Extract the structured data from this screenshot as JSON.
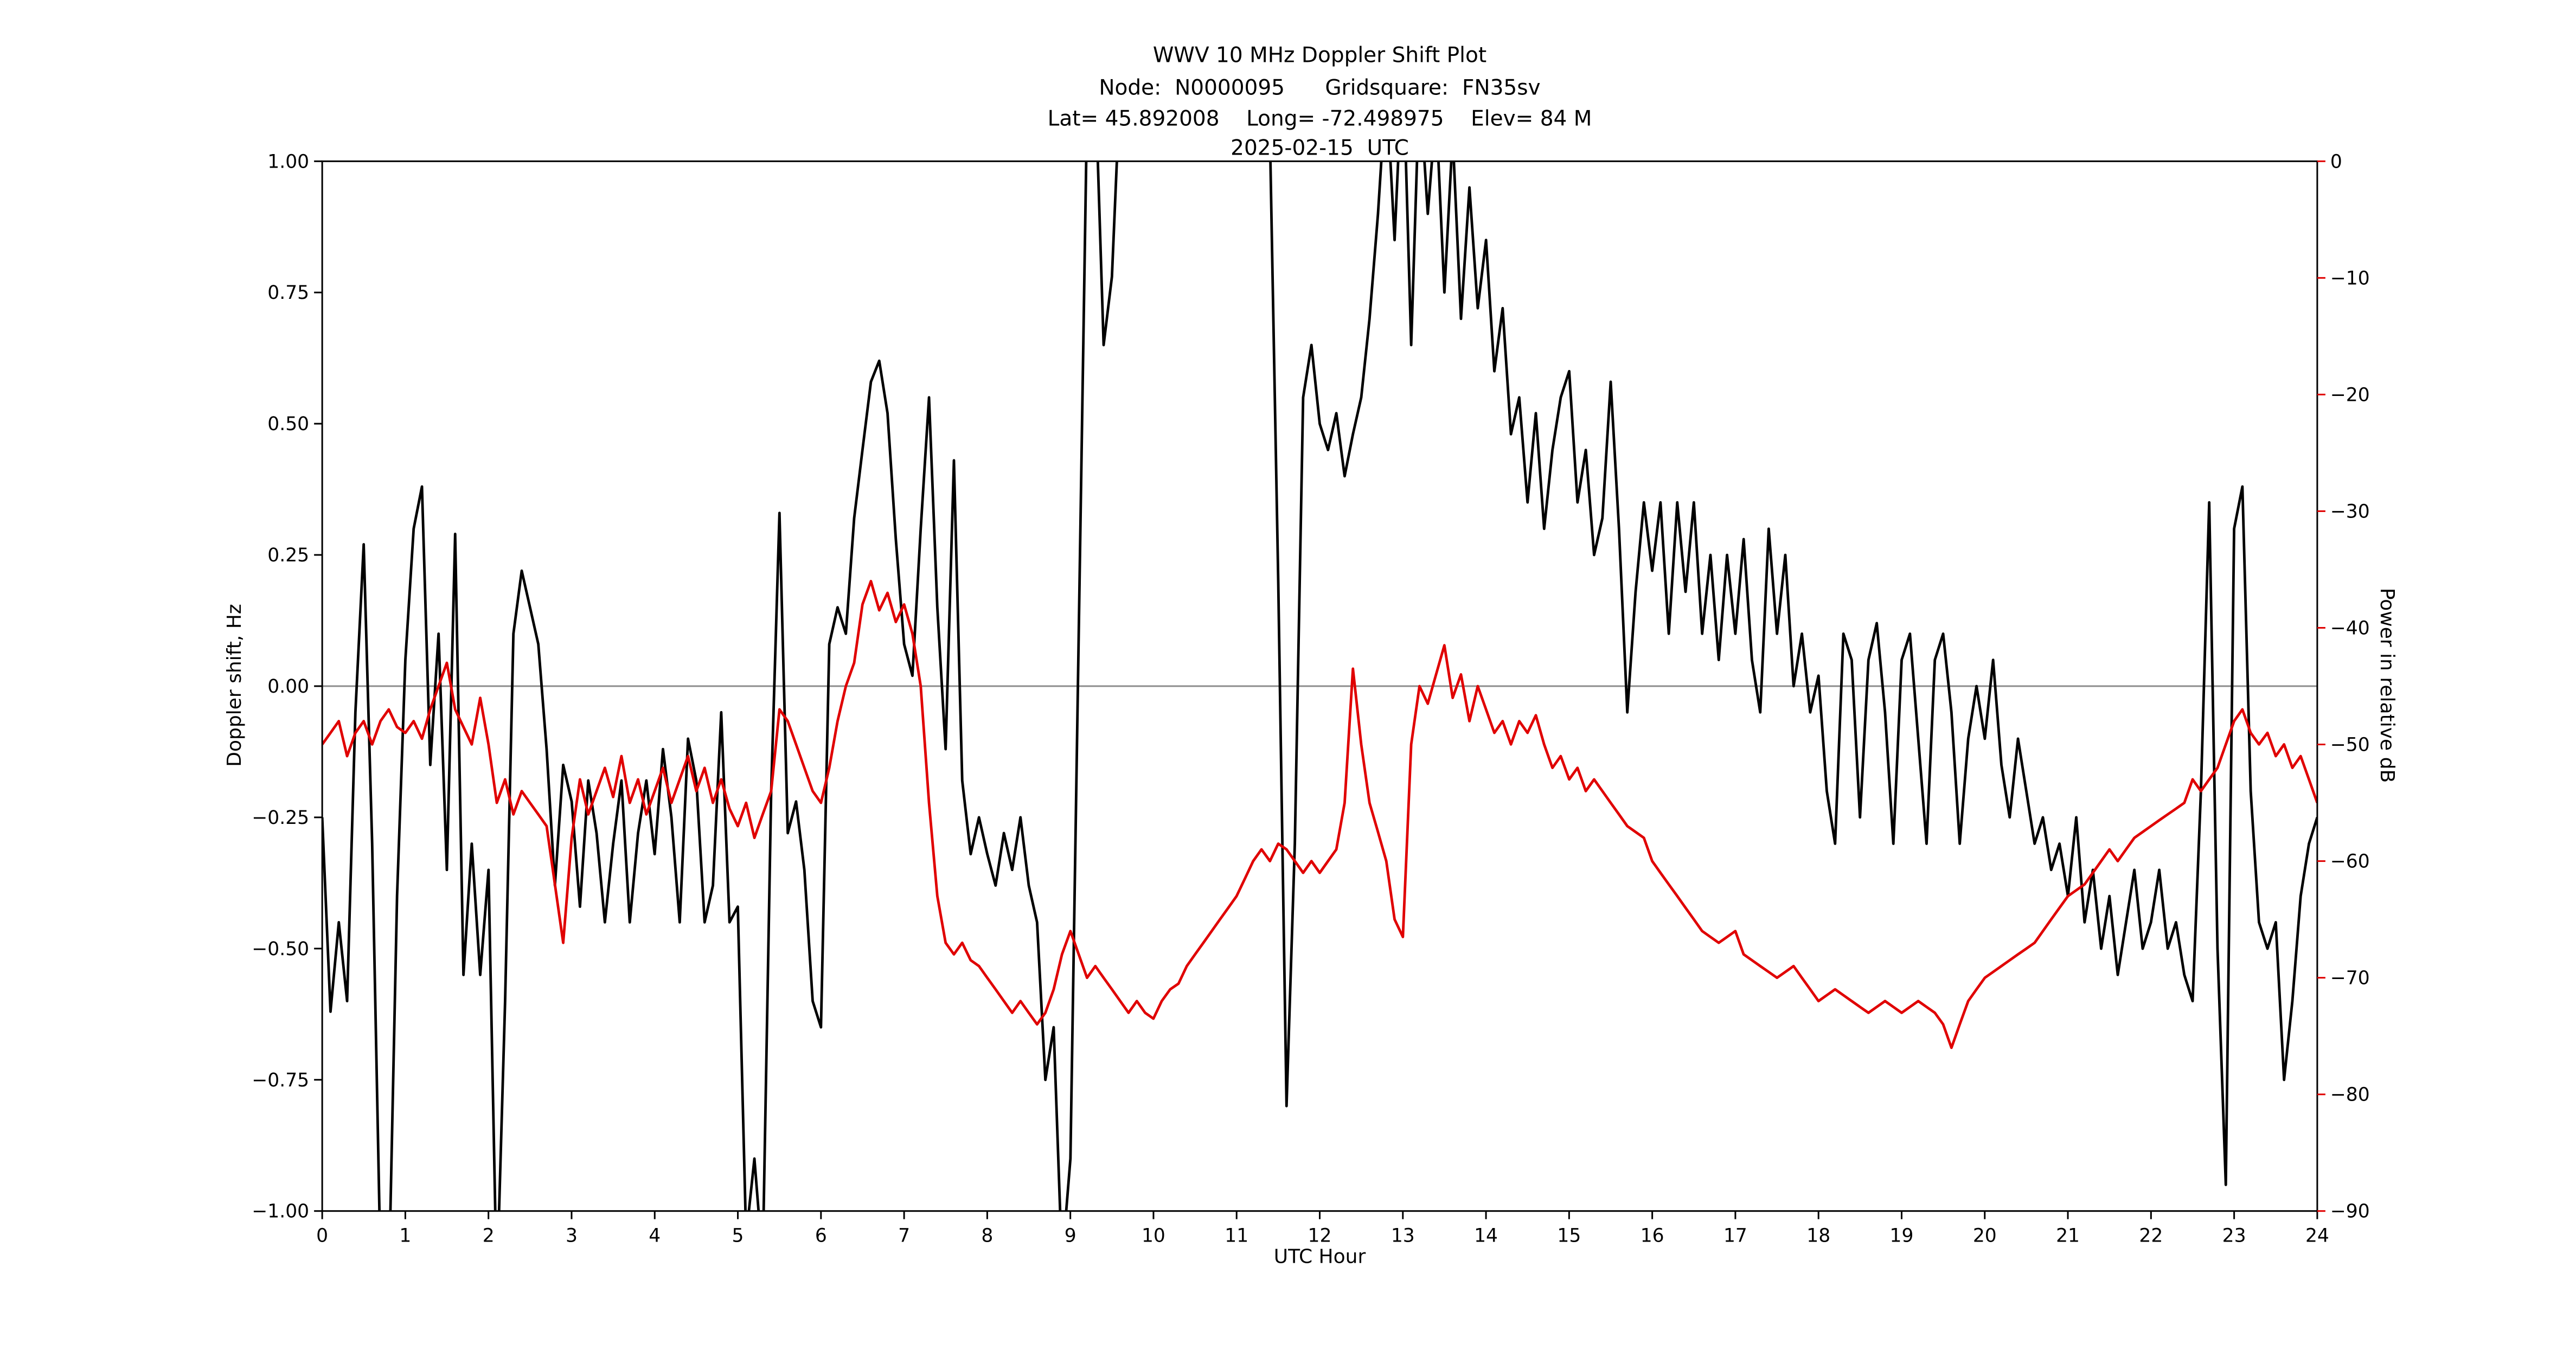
{
  "window": {
    "background": "#ffffff"
  },
  "chart_data": {
    "type": "line",
    "title": "WWV 10 MHz Doppler Shift Plot",
    "subtitle_node": "Node:  N0000095      Gridsquare:  FN35sv",
    "subtitle_location": "Lat= 45.892008    Long= -72.498975    Elev= 84 M",
    "subtitle_date": "2025-02-15  UTC",
    "xlabel": "UTC Hour",
    "ylabel_left": "Doppler shift, Hz",
    "ylabel_right": "Power in relative dB",
    "xlim": [
      0,
      24
    ],
    "ylim_left": [
      -1.0,
      1.0
    ],
    "ylim_right": [
      -90,
      0
    ],
    "axes_color": "#000000",
    "zero_line": {
      "value": 0,
      "color": "#8c8c8c"
    },
    "x_ticks": {
      "values": [
        0,
        1,
        2,
        3,
        4,
        5,
        6,
        7,
        8,
        9,
        10,
        11,
        12,
        13,
        14,
        15,
        16,
        17,
        18,
        19,
        20,
        21,
        22,
        23,
        24
      ],
      "labels": [
        "0",
        "1",
        "2",
        "3",
        "4",
        "5",
        "6",
        "7",
        "8",
        "9",
        "10",
        "11",
        "12",
        "13",
        "14",
        "15",
        "16",
        "17",
        "18",
        "19",
        "20",
        "21",
        "22",
        "23",
        "24"
      ]
    },
    "y_ticks_left": {
      "values": [
        1.0,
        0.75,
        0.5,
        0.25,
        0.0,
        -0.25,
        -0.5,
        -0.75,
        -1.0
      ],
      "labels": [
        "1.00",
        "0.75",
        "0.50",
        "0.25",
        "0.00",
        "−0.25",
        "−0.50",
        "−0.75",
        "−1.00"
      ]
    },
    "y_ticks_right": {
      "values": [
        0,
        -10,
        -20,
        -30,
        -40,
        -50,
        -60,
        -70,
        -80,
        -90
      ],
      "labels": [
        "0",
        "−10",
        "−20",
        "−30",
        "−40",
        "−50",
        "−60",
        "−70",
        "−80",
        "−90"
      ]
    },
    "series": [
      {
        "name": "doppler-shift",
        "label": "Doppler shift, Hz",
        "axis": "left",
        "color": "#000000",
        "line_width": 1.6,
        "x_start": 0,
        "x_step": 0.1,
        "y": [
          -0.25,
          -0.62,
          -0.45,
          -0.6,
          -0.05,
          0.27,
          -0.3,
          -1.1,
          -1.15,
          -0.4,
          0.05,
          0.3,
          0.38,
          -0.15,
          0.1,
          -0.35,
          0.29,
          -0.55,
          -0.3,
          -0.55,
          -0.35,
          -1.15,
          -0.6,
          0.1,
          0.22,
          0.15,
          0.08,
          -0.12,
          -0.38,
          -0.15,
          -0.22,
          -0.42,
          -0.18,
          -0.28,
          -0.45,
          -0.3,
          -0.18,
          -0.45,
          -0.28,
          -0.18,
          -0.32,
          -0.12,
          -0.25,
          -0.45,
          -0.1,
          -0.18,
          -0.45,
          -0.38,
          -0.05,
          -0.45,
          -0.42,
          -1.05,
          -0.9,
          -1.1,
          -0.2,
          0.33,
          -0.28,
          -0.22,
          -0.35,
          -0.6,
          -0.65,
          0.08,
          0.15,
          0.1,
          0.32,
          0.45,
          0.58,
          0.62,
          0.52,
          0.28,
          0.08,
          0.02,
          0.3,
          0.55,
          0.15,
          -0.12,
          0.43,
          -0.18,
          -0.32,
          -0.25,
          -0.32,
          -0.38,
          -0.28,
          -0.35,
          -0.25,
          -0.38,
          -0.45,
          -0.75,
          -0.65,
          -1.1,
          -0.9,
          0.1,
          1.1,
          1.15,
          0.65,
          0.78,
          1.15,
          1.3,
          1.25,
          1.35,
          1.3,
          1.25,
          1.35,
          1.3,
          1.2,
          1.3,
          1.25,
          1.35,
          1.3,
          1.25,
          1.3,
          1.2,
          1.3,
          1.15,
          1.05,
          0.2,
          -0.8,
          -0.3,
          0.55,
          0.65,
          0.5,
          0.45,
          0.52,
          0.4,
          0.48,
          0.55,
          0.7,
          0.9,
          1.15,
          0.85,
          1.2,
          0.65,
          1.15,
          0.9,
          1.1,
          0.75,
          1.05,
          0.7,
          0.95,
          0.72,
          0.85,
          0.6,
          0.72,
          0.48,
          0.55,
          0.35,
          0.52,
          0.3,
          0.45,
          0.55,
          0.6,
          0.35,
          0.45,
          0.25,
          0.32,
          0.58,
          0.3,
          -0.05,
          0.18,
          0.35,
          0.22,
          0.35,
          0.1,
          0.35,
          0.18,
          0.35,
          0.1,
          0.25,
          0.05,
          0.25,
          0.1,
          0.28,
          0.05,
          -0.05,
          0.3,
          0.1,
          0.25,
          0.0,
          0.1,
          -0.05,
          0.02,
          -0.2,
          -0.3,
          0.1,
          0.05,
          -0.25,
          0.05,
          0.12,
          -0.05,
          -0.3,
          0.05,
          0.1,
          -0.1,
          -0.3,
          0.05,
          0.1,
          -0.05,
          -0.3,
          -0.1,
          0.0,
          -0.1,
          0.05,
          -0.15,
          -0.25,
          -0.1,
          -0.2,
          -0.3,
          -0.25,
          -0.35,
          -0.3,
          -0.4,
          -0.25,
          -0.45,
          -0.35,
          -0.5,
          -0.4,
          -0.55,
          -0.45,
          -0.35,
          -0.5,
          -0.45,
          -0.35,
          -0.5,
          -0.45,
          -0.55,
          -0.6,
          -0.2,
          0.35,
          -0.5,
          -0.95,
          0.3,
          0.38,
          -0.2,
          -0.45,
          -0.5,
          -0.45,
          -0.75,
          -0.6,
          -0.4,
          -0.3,
          -0.25
        ]
      },
      {
        "name": "relative-power",
        "label": "Power in relative dB",
        "axis": "right",
        "color": "#e00000",
        "line_width": 1.6,
        "x_start": 0,
        "x_step": 0.1,
        "y": [
          -50,
          -49,
          -48,
          -51,
          -49,
          -48,
          -50,
          -48,
          -47,
          -48.5,
          -49,
          -48,
          -49.5,
          -47,
          -45,
          -43,
          -47,
          -48.5,
          -50,
          -46,
          -50,
          -55,
          -53,
          -56,
          -54,
          -55,
          -56,
          -57,
          -62,
          -67,
          -58,
          -53,
          -56,
          -54,
          -52,
          -54.5,
          -51,
          -55,
          -53,
          -56,
          -54,
          -52,
          -55,
          -53,
          -51,
          -54,
          -52,
          -55,
          -53,
          -55.5,
          -57,
          -55,
          -58,
          -56,
          -54,
          -47,
          -48,
          -50,
          -52,
          -54,
          -55,
          -52,
          -48,
          -45,
          -43,
          -38,
          -36,
          -38.5,
          -37,
          -39.5,
          -38,
          -40.5,
          -45,
          -55,
          -63,
          -67,
          -68,
          -67,
          -68.5,
          -69,
          -70,
          -71,
          -72,
          -73,
          -72,
          -73,
          -74,
          -73,
          -71,
          -68,
          -66,
          -68,
          -70,
          -69,
          -70,
          -71,
          -72,
          -73,
          -72,
          -73,
          -73.5,
          -72,
          -71,
          -70.5,
          -69,
          -68,
          -67,
          -66,
          -65,
          -64,
          -63,
          -61.5,
          -60,
          -59,
          -60,
          -58.5,
          -59,
          -60,
          -61,
          -60,
          -61,
          -60,
          -59,
          -55,
          -43.5,
          -50,
          -55,
          -57.5,
          -60,
          -65,
          -66.5,
          -50,
          -45,
          -46.5,
          -44,
          -41.5,
          -46,
          -44,
          -48,
          -45,
          -47,
          -49,
          -48,
          -50,
          -48,
          -49,
          -47.5,
          -50,
          -52,
          -51,
          -53,
          -52,
          -54,
          -53,
          -54,
          -55,
          -56,
          -57,
          -57.5,
          -58,
          -60,
          -61,
          -62,
          -63,
          -64,
          -65,
          -66,
          -66.5,
          -67,
          -66.5,
          -66,
          -68,
          -68.5,
          -69,
          -69.5,
          -70,
          -69.5,
          -69,
          -70,
          -71,
          -72,
          -71.5,
          -71,
          -71.5,
          -72,
          -72.5,
          -73,
          -72.5,
          -72,
          -72.5,
          -73,
          -72.5,
          -72,
          -72.5,
          -73,
          -74,
          -76,
          -74,
          -72,
          -71,
          -70,
          -69.5,
          -69,
          -68.5,
          -68,
          -67.5,
          -67,
          -66,
          -65,
          -64,
          -63,
          -62.5,
          -62,
          -61,
          -60,
          -59,
          -60,
          -59,
          -58,
          -57.5,
          -57,
          -56.5,
          -56,
          -55.5,
          -55,
          -53,
          -54,
          -53,
          -52,
          -50,
          -48,
          -47,
          -49,
          -50,
          -49,
          -51,
          -50,
          -52,
          -51,
          -53,
          -55
        ]
      }
    ]
  }
}
